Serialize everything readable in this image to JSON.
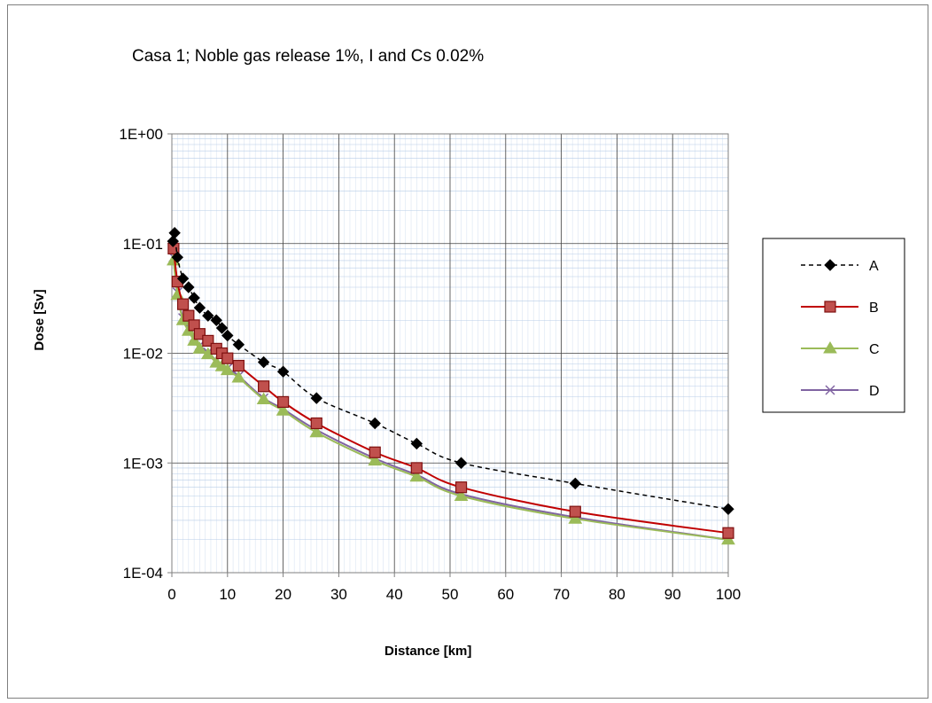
{
  "chart_data": {
    "type": "line",
    "title": "Casa 1; Noble gas release 1%, I and Cs 0.02%",
    "xlabel": "Distance [km]",
    "ylabel": "Dose [Sv]",
    "xlim": [
      0,
      100
    ],
    "ylim": [
      0.0001,
      1
    ],
    "yscale": "log",
    "grid": true,
    "legend_position": "right",
    "x_ticks": [
      "0",
      "10",
      "20",
      "30",
      "40",
      "50",
      "60",
      "70",
      "80",
      "90",
      "100"
    ],
    "y_ticks": [
      "1E-04",
      "1E-03",
      "1E-02",
      "1E-01",
      "1E+00"
    ],
    "series": [
      {
        "name": "A",
        "color": "#000000",
        "dash": true,
        "marker": "diamond",
        "points": [
          [
            0.2,
            0.105
          ],
          [
            0.5,
            0.125
          ],
          [
            1,
            0.075
          ],
          [
            2,
            0.048
          ],
          [
            3,
            0.04
          ],
          [
            4,
            0.032
          ],
          [
            5,
            0.026
          ],
          [
            6.5,
            0.022
          ],
          [
            8,
            0.02
          ],
          [
            9,
            0.017
          ],
          [
            10,
            0.0145
          ],
          [
            12,
            0.012
          ],
          [
            16.5,
            0.0083
          ],
          [
            20,
            0.0068
          ],
          [
            26,
            0.0039
          ],
          [
            36.5,
            0.0023
          ],
          [
            44,
            0.0015
          ],
          [
            52,
            0.001
          ],
          [
            72.5,
            0.00065
          ],
          [
            100,
            0.00038
          ]
        ]
      },
      {
        "name": "B",
        "color": "#c00000",
        "dash": false,
        "marker": "square",
        "points": [
          [
            0.3,
            0.09
          ],
          [
            1,
            0.045
          ],
          [
            2,
            0.028
          ],
          [
            3,
            0.022
          ],
          [
            4,
            0.018
          ],
          [
            5,
            0.015
          ],
          [
            6.5,
            0.013
          ],
          [
            8,
            0.011
          ],
          [
            9,
            0.01
          ],
          [
            10,
            0.009
          ],
          [
            12,
            0.0077
          ],
          [
            16.5,
            0.005
          ],
          [
            20,
            0.0036
          ],
          [
            26,
            0.0023
          ],
          [
            36.5,
            0.00125
          ],
          [
            44,
            0.0009
          ],
          [
            52,
            0.0006
          ],
          [
            72.5,
            0.00036
          ],
          [
            100,
            0.00023
          ]
        ]
      },
      {
        "name": "C",
        "color": "#9bbb59",
        "dash": false,
        "marker": "triangle",
        "points": [
          [
            0.3,
            0.07
          ],
          [
            1,
            0.034
          ],
          [
            2,
            0.02
          ],
          [
            3,
            0.016
          ],
          [
            4,
            0.013
          ],
          [
            5,
            0.011
          ],
          [
            6.5,
            0.0098
          ],
          [
            8,
            0.0082
          ],
          [
            9,
            0.0076
          ],
          [
            10,
            0.007
          ],
          [
            12,
            0.006
          ],
          [
            16.5,
            0.0038
          ],
          [
            20,
            0.003
          ],
          [
            26,
            0.0019
          ],
          [
            36.5,
            0.00105
          ],
          [
            44,
            0.00075
          ],
          [
            52,
            0.0005
          ],
          [
            72.5,
            0.00031
          ],
          [
            100,
            0.0002
          ]
        ]
      },
      {
        "name": "D",
        "color": "#8064a2",
        "dash": false,
        "marker": "x",
        "points": [
          [
            0.3,
            0.075
          ],
          [
            1,
            0.036
          ],
          [
            2,
            0.021
          ],
          [
            3,
            0.017
          ],
          [
            4,
            0.014
          ],
          [
            5,
            0.0118
          ],
          [
            6.5,
            0.0102
          ],
          [
            8,
            0.0086
          ],
          [
            9,
            0.0079
          ],
          [
            10,
            0.0073
          ],
          [
            12,
            0.0062
          ],
          [
            16.5,
            0.0039
          ],
          [
            20,
            0.0031
          ],
          [
            26,
            0.002
          ],
          [
            36.5,
            0.0011
          ],
          [
            44,
            0.00078
          ],
          [
            52,
            0.00052
          ],
          [
            72.5,
            0.00032
          ],
          [
            100,
            0.0002
          ]
        ]
      }
    ]
  }
}
